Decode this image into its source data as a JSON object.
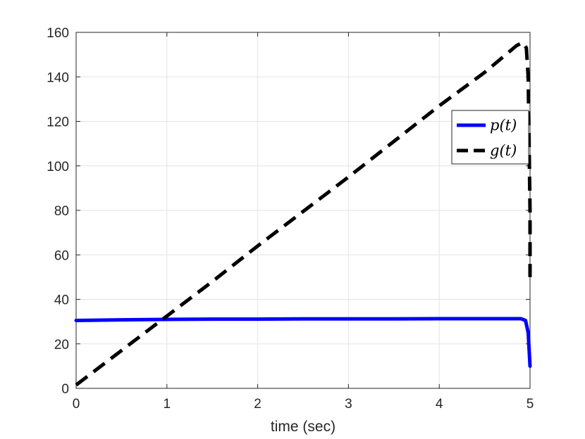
{
  "chart_data": {
    "type": "line",
    "title": "",
    "xlabel": "time (sec)",
    "ylabel": "",
    "xlim": [
      0,
      5
    ],
    "ylim": [
      0,
      160
    ],
    "xticks": [
      0,
      1,
      2,
      3,
      4,
      5
    ],
    "yticks": [
      0,
      20,
      40,
      60,
      80,
      100,
      120,
      140,
      160
    ],
    "xtick_labels": [
      "0",
      "1",
      "2",
      "3",
      "4",
      "5"
    ],
    "ytick_labels": [
      "0",
      "20",
      "40",
      "60",
      "80",
      "100",
      "120",
      "140",
      "160"
    ],
    "grid": true,
    "legend_position": "right, above middle",
    "series": [
      {
        "name": "p(t)",
        "legend_label": "p(t)",
        "color": "#0000ff",
        "style": "solid",
        "x": [
          0,
          0.5,
          1,
          1.5,
          2,
          2.5,
          3,
          3.5,
          4,
          4.5,
          4.8,
          4.9,
          4.95,
          4.98,
          5.0
        ],
        "y": [
          30.5,
          30.8,
          31.0,
          31.1,
          31.1,
          31.2,
          31.2,
          31.2,
          31.3,
          31.3,
          31.3,
          31.3,
          30.5,
          25,
          10
        ]
      },
      {
        "name": "g(t)",
        "legend_label": "g(t)",
        "color": "#000000",
        "style": "dashed",
        "x": [
          0,
          0.5,
          1,
          1.5,
          2,
          2.5,
          3,
          3.5,
          4,
          4.5,
          4.85,
          4.92,
          4.96,
          4.98,
          4.99,
          5.0,
          5.0
        ],
        "y": [
          1.5,
          17,
          32.5,
          48,
          64,
          79.5,
          95,
          111,
          127,
          142,
          154,
          155.5,
          153,
          140,
          110,
          80,
          50
        ]
      }
    ]
  }
}
